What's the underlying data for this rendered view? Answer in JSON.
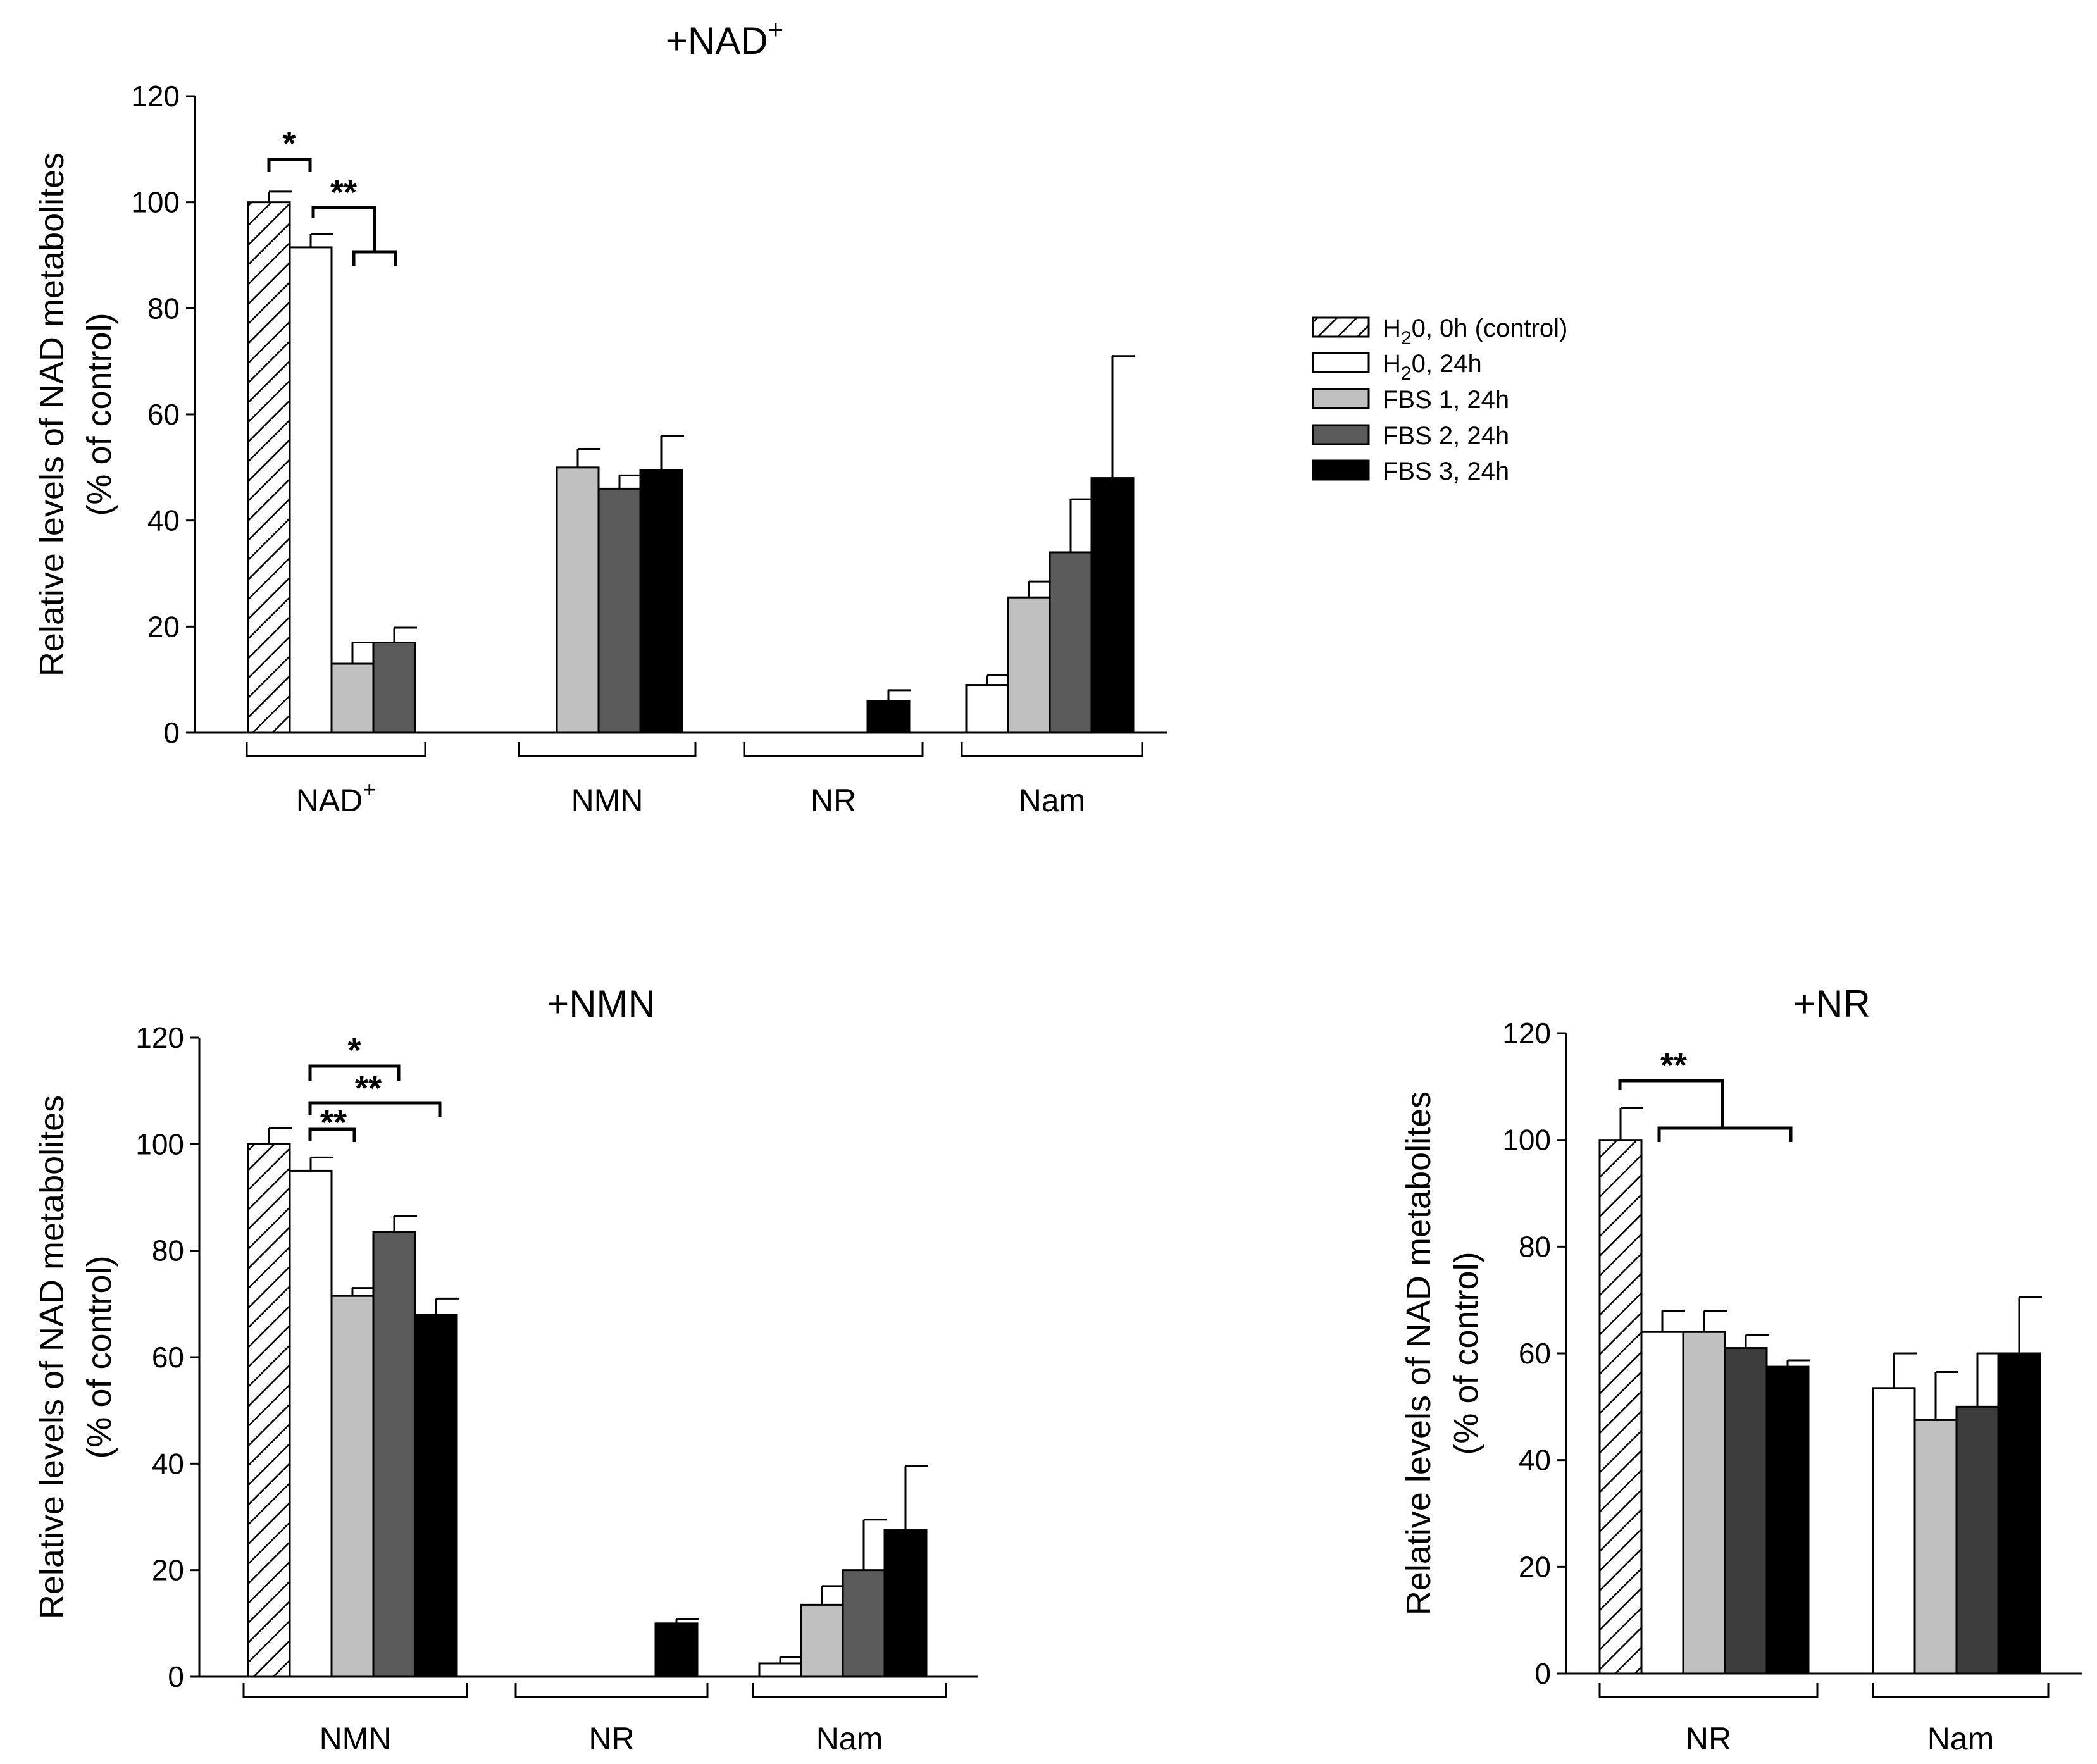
{
  "legend": {
    "entries": [
      {
        "key": "h2o_0h",
        "pre": "H",
        "sub": "2",
        "post": "0, 0h (control)"
      },
      {
        "key": "h2o_24h",
        "pre": "H",
        "sub": "2",
        "post": "0, 24h"
      },
      {
        "key": "fbs1",
        "pre": "FBS 1, 24h",
        "sub": "",
        "post": ""
      },
      {
        "key": "fbs2",
        "pre": "FBS 2, 24h",
        "sub": "",
        "post": ""
      },
      {
        "key": "fbs3",
        "pre": "FBS 3, 24h",
        "sub": "",
        "post": ""
      }
    ]
  },
  "colors": {
    "h2o_0h": "hatch",
    "h2o_24h": "#ffffff",
    "fbs1": "#c0c0c0",
    "fbs2": "#5a5a5a",
    "fbs3": "#000000",
    "fbs2_nr_panel": "#3c3c3c"
  },
  "chart_data": [
    {
      "type": "bar",
      "title": {
        "main": "+NAD",
        "sup": "+"
      },
      "ylabel": [
        "Relative levels of NAD metabolites",
        "(% of control)"
      ],
      "ylim": [
        0,
        120
      ],
      "yticks": [
        0,
        20,
        40,
        60,
        80,
        100,
        120
      ],
      "groups": [
        {
          "label": "NAD",
          "sup": "+",
          "bars": [
            {
              "series": "h2o_0h",
              "value": 100,
              "err": 2
            },
            {
              "series": "h2o_24h",
              "value": 91.5,
              "err": 2.5
            },
            {
              "series": "fbs1",
              "value": 13,
              "err": 4
            },
            {
              "series": "fbs2",
              "value": 17,
              "err": 2.8
            }
          ]
        },
        {
          "label": "NMN",
          "sup": "",
          "bars": [
            {
              "series": "fbs1",
              "value": 50,
              "err": 3.5
            },
            {
              "series": "fbs2",
              "value": 46,
              "err": 2.5
            },
            {
              "series": "fbs3",
              "value": 49.5,
              "err": 6.5
            }
          ]
        },
        {
          "label": "NR",
          "sup": "",
          "bars": [
            {
              "series": "fbs3",
              "value": 6,
              "err": 2
            }
          ]
        },
        {
          "label": "Nam",
          "sup": "",
          "bars": [
            {
              "series": "h2o_24h",
              "value": 9,
              "err": 1.8
            },
            {
              "series": "fbs1",
              "value": 25.5,
              "err": 3
            },
            {
              "series": "fbs2",
              "value": 34,
              "err": 10
            },
            {
              "series": "fbs3",
              "value": 48,
              "err": 23
            }
          ]
        }
      ],
      "significance": [
        {
          "label": "*",
          "from": "h2o_0h",
          "to": "h2o_24h",
          "group": "NAD"
        },
        {
          "label": "**",
          "from": "h2o_24h",
          "to": "fbs1,fbs2",
          "group": "NAD"
        }
      ]
    },
    {
      "type": "bar",
      "title": {
        "main": "+NMN",
        "sup": ""
      },
      "ylabel": [
        "Relative levels of NAD metabolites",
        "(% of control)"
      ],
      "ylim": [
        0,
        120
      ],
      "yticks": [
        0,
        20,
        40,
        60,
        80,
        100,
        120
      ],
      "groups": [
        {
          "label": "NMN",
          "sup": "",
          "bars": [
            {
              "series": "h2o_0h",
              "value": 100,
              "err": 3
            },
            {
              "series": "h2o_24h",
              "value": 95,
              "err": 2.5
            },
            {
              "series": "fbs1",
              "value": 71.5,
              "err": 1.5
            },
            {
              "series": "fbs2",
              "value": 83.5,
              "err": 3
            },
            {
              "series": "fbs3",
              "value": 68,
              "err": 3
            }
          ]
        },
        {
          "label": "NR",
          "sup": "",
          "bars": [
            {
              "series": "fbs3",
              "value": 10,
              "err": 0.8
            }
          ]
        },
        {
          "label": "Nam",
          "sup": "",
          "bars": [
            {
              "series": "h2o_24h",
              "value": 2.5,
              "err": 1.2
            },
            {
              "series": "fbs1",
              "value": 13.5,
              "err": 3.5
            },
            {
              "series": "fbs2",
              "value": 20,
              "err": 9.5
            },
            {
              "series": "fbs3",
              "value": 27.5,
              "err": 12
            }
          ]
        }
      ],
      "significance": [
        {
          "label": "*",
          "from": "h2o_24h",
          "to": "fbs2",
          "group": "NMN"
        },
        {
          "label": "**",
          "from": "h2o_24h",
          "to": "fbs3",
          "group": "NMN"
        },
        {
          "label": "**",
          "from": "h2o_24h",
          "to": "fbs1",
          "group": "NMN"
        }
      ]
    },
    {
      "type": "bar",
      "title": {
        "main": "+NR",
        "sup": ""
      },
      "ylabel": [
        "Relative levels of NAD metabolites",
        "(% of control)"
      ],
      "ylim": [
        0,
        120
      ],
      "yticks": [
        0,
        20,
        40,
        60,
        80,
        100,
        120
      ],
      "groups": [
        {
          "label": "NR",
          "sup": "",
          "bars": [
            {
              "series": "h2o_0h",
              "value": 100,
              "err": 6
            },
            {
              "series": "h2o_24h",
              "value": 64,
              "err": 4
            },
            {
              "series": "fbs1",
              "value": 64,
              "err": 4
            },
            {
              "series": "fbs2",
              "value": 61,
              "err": 2.5
            },
            {
              "series": "fbs3",
              "value": 57.5,
              "err": 1.2
            }
          ]
        },
        {
          "label": "Nam",
          "sup": "",
          "bars": [
            {
              "series": "h2o_24h",
              "value": 53.5,
              "err": 6.5
            },
            {
              "series": "fbs1",
              "value": 47.5,
              "err": 9
            },
            {
              "series": "fbs2",
              "value": 50,
              "err": 10
            },
            {
              "series": "fbs3",
              "value": 60,
              "err": 10.5
            }
          ]
        }
      ],
      "significance": [
        {
          "label": "**",
          "from": "h2o_0h",
          "to": "h2o_24h,fbs3",
          "group": "NR"
        }
      ]
    }
  ]
}
